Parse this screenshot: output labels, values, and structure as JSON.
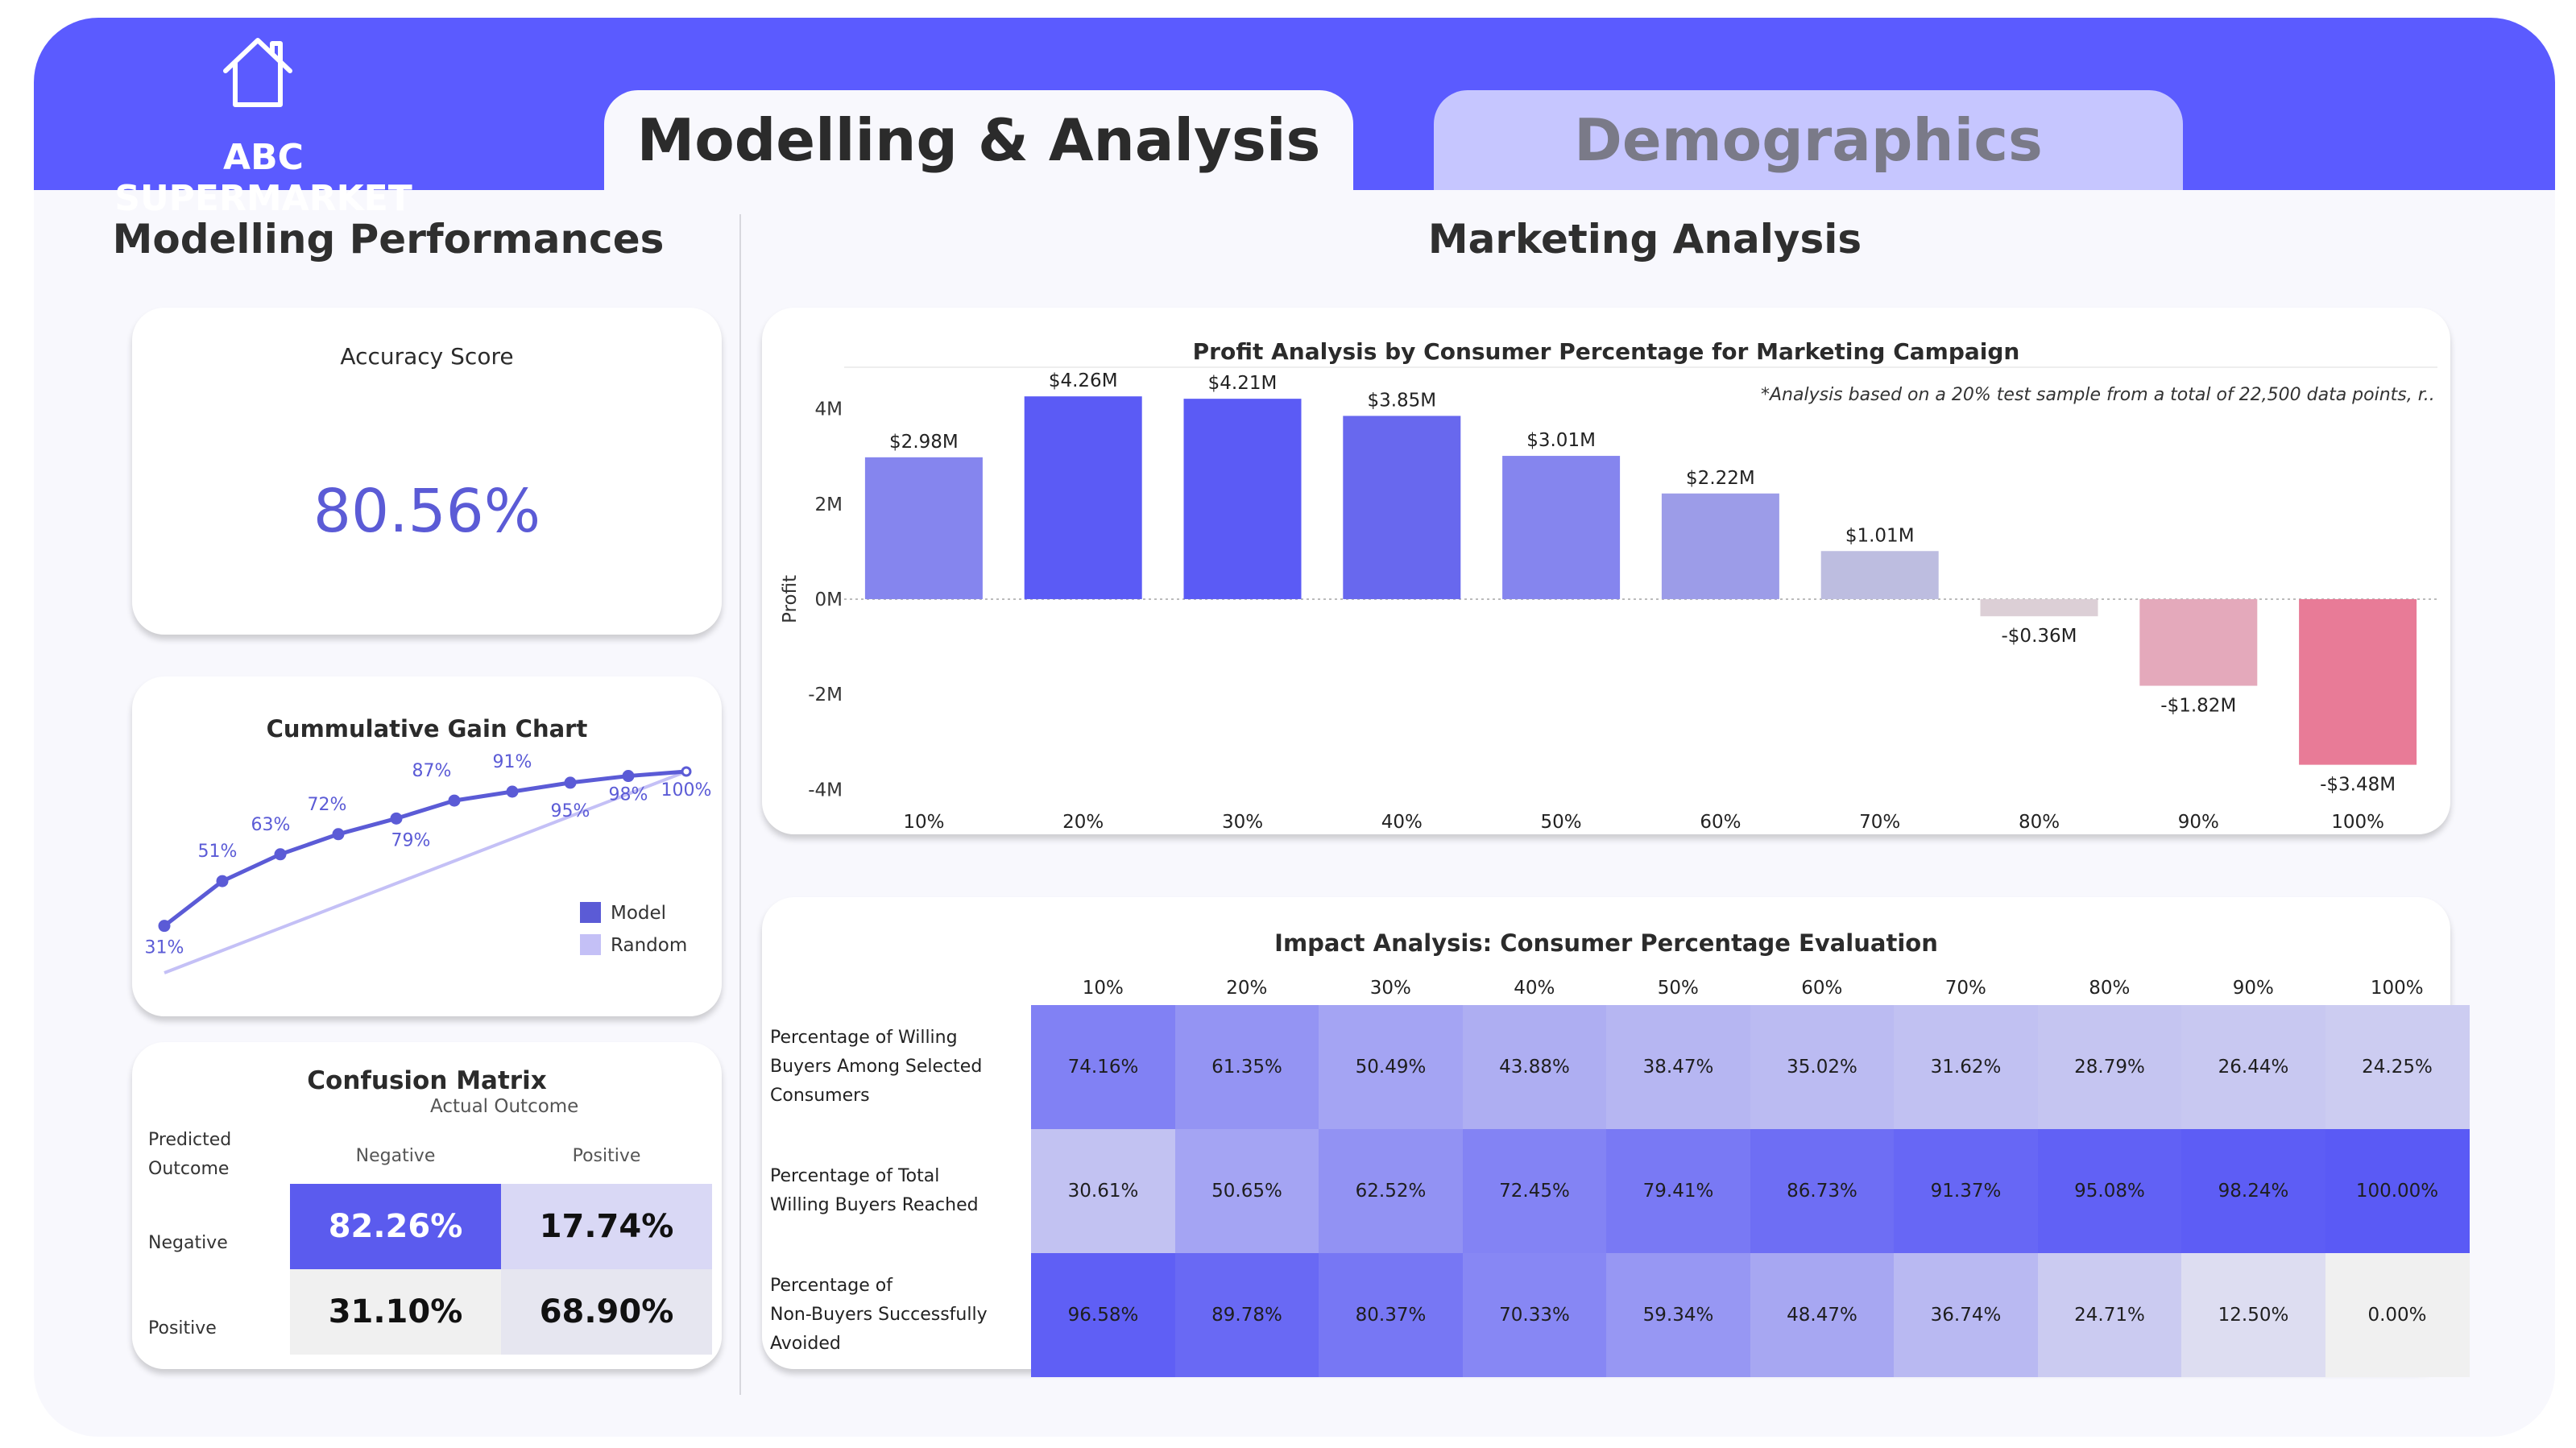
{
  "header": {
    "brand": "ABC SUPERMARKET",
    "logo_icon": "house-icon",
    "tabs": [
      {
        "label": "Modelling & Analysis",
        "active": true
      },
      {
        "label": "Demographics",
        "active": false
      }
    ],
    "colors": {
      "primary": "#5b5bff",
      "inactive_tab": "#c6c6ff",
      "negative": "#e87b97"
    }
  },
  "left": {
    "title": "Modelling Performances",
    "accuracy": {
      "title": "Accuracy Score",
      "value": "80.56%"
    },
    "gain_chart": {
      "title": "Cummulative Gain Chart",
      "legend": [
        "Model",
        "Random"
      ]
    },
    "confusion": {
      "title": "Confusion Matrix",
      "actual_label": "Actual Outcome",
      "predicted_label_1": "Predicted",
      "predicted_label_2": "Outcome",
      "col_negative": "Negative",
      "col_positive": "Positive",
      "row_negative": "Negative",
      "row_positive": "Positive",
      "tn": "82.26%",
      "fp": "17.74%",
      "fn": "31.10%",
      "tp": "68.90%"
    }
  },
  "right": {
    "title": "Marketing Analysis",
    "profit_chart_title": "Profit Analysis by Consumer Percentage for Marketing Campaign",
    "profit_note": "*Analysis based on a 20% test sample from a total of 22,500 data points, r..",
    "impact": {
      "title": "Impact Analysis: Consumer Percentage Evaluation",
      "columns": [
        "10%",
        "20%",
        "30%",
        "40%",
        "50%",
        "60%",
        "70%",
        "80%",
        "90%",
        "100%"
      ],
      "rows": [
        {
          "label_lines": [
            "Percentage of Willing",
            "Buyers Among Selected",
            "Consumers"
          ],
          "values": [
            "74.16%",
            "61.35%",
            "50.49%",
            "43.88%",
            "38.47%",
            "35.02%",
            "31.62%",
            "28.79%",
            "26.44%",
            "24.25%"
          ]
        },
        {
          "label_lines": [
            "Percentage of Total",
            "Willing Buyers Reached"
          ],
          "values": [
            "30.61%",
            "50.65%",
            "62.52%",
            "72.45%",
            "79.41%",
            "86.73%",
            "91.37%",
            "95.08%",
            "98.24%",
            "100.00%"
          ]
        },
        {
          "label_lines": [
            "Percentage of",
            "Non-Buyers Successfully",
            "Avoided"
          ],
          "values": [
            "96.58%",
            "89.78%",
            "80.37%",
            "70.33%",
            "59.34%",
            "48.47%",
            "36.74%",
            "24.71%",
            "12.50%",
            "0.00%"
          ]
        }
      ]
    }
  },
  "chart_data": [
    {
      "type": "line",
      "title": "Cummulative Gain Chart",
      "x": [
        10,
        20,
        30,
        40,
        50,
        60,
        70,
        80,
        90,
        100
      ],
      "series": [
        {
          "name": "Model",
          "values": [
            31,
            51,
            63,
            72,
            79,
            87,
            91,
            95,
            98,
            100
          ],
          "labels": [
            "31%",
            "51%",
            "63%",
            "72%",
            "79%",
            "87%",
            "91%",
            "95%",
            "98%",
            "100%"
          ]
        },
        {
          "name": "Random",
          "values": [
            10,
            20,
            30,
            40,
            50,
            60,
            70,
            80,
            90,
            100
          ]
        }
      ],
      "legend_position": "bottom-right",
      "grid": false
    },
    {
      "type": "bar",
      "title": "Profit Analysis by Consumer Percentage for Marketing Campaign",
      "categories": [
        "10%",
        "20%",
        "30%",
        "40%",
        "50%",
        "60%",
        "70%",
        "80%",
        "90%",
        "100%"
      ],
      "values": [
        2.98,
        4.26,
        4.21,
        3.85,
        3.01,
        2.22,
        1.01,
        -0.36,
        -1.82,
        -3.48
      ],
      "value_labels": [
        "$2.98M",
        "$4.26M",
        "$4.21M",
        "$3.85M",
        "$3.01M",
        "$2.22M",
        "$1.01M",
        "-$0.36M",
        "-$1.82M",
        "-$3.48M"
      ],
      "ylabel": "Profit",
      "yticks": [
        "4M",
        "2M",
        "0M",
        "-2M",
        "-4M"
      ],
      "ytick_values": [
        4,
        2,
        0,
        -2,
        -4
      ],
      "ylim": [
        -4.4,
        4.5
      ],
      "units": "millions USD",
      "grid": true
    },
    {
      "type": "heatmap",
      "title": "Impact Analysis: Consumer Percentage Evaluation",
      "columns": [
        "10%",
        "20%",
        "30%",
        "40%",
        "50%",
        "60%",
        "70%",
        "80%",
        "90%",
        "100%"
      ],
      "values": [
        [
          74.16,
          61.35,
          50.49,
          43.88,
          38.47,
          35.02,
          31.62,
          28.79,
          26.44,
          24.25
        ],
        [
          30.61,
          50.65,
          62.52,
          72.45,
          79.41,
          86.73,
          91.37,
          95.08,
          98.24,
          100.0
        ],
        [
          96.58,
          89.78,
          80.37,
          70.33,
          59.34,
          48.47,
          36.74,
          24.71,
          12.5,
          0.0
        ]
      ]
    }
  ]
}
